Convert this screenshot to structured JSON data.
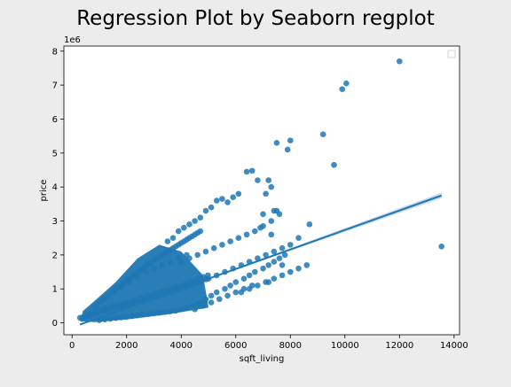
{
  "chart_data": {
    "type": "scatter",
    "title": "Regression Plot by Seaborn regplot",
    "xlabel": "sqft_living",
    "ylabel": "price",
    "y_offset_label": "1e6",
    "xlim": [
      -300,
      14200
    ],
    "ylim": [
      -0.35,
      8.15
    ],
    "y_unit_multiplier": 1000000,
    "x_ticks": [
      0,
      2000,
      4000,
      6000,
      8000,
      10000,
      12000,
      14000
    ],
    "x_tick_labels": [
      "0",
      "2000",
      "4000",
      "6000",
      "8000",
      "10000",
      "12000",
      "14000"
    ],
    "y_ticks": [
      0,
      1,
      2,
      3,
      4,
      5,
      6,
      7,
      8
    ],
    "y_tick_labels": [
      "0",
      "1",
      "2",
      "3",
      "4",
      "5",
      "6",
      "7",
      "8"
    ],
    "grid": false,
    "legend": {
      "placement": "upper right",
      "entries": []
    },
    "colors": {
      "point": "#1f77b4",
      "line": "#1f77b4",
      "band": "#aecbe6",
      "background": "#ececec",
      "axes_bg": "#ffffff"
    },
    "regression_line": {
      "x": [
        290,
        13540
      ],
      "y": [
        -0.05,
        3.75
      ],
      "ci_halfwidth_at_end": 0.08
    },
    "scatter_series": {
      "name": "",
      "note_dense_region": "dense cluster from ~300 to ~5000 sqft, price ~0.1 to ~2.5 (1e6)",
      "x": [
        290,
        370,
        420,
        480,
        520,
        560,
        600,
        640,
        700,
        760,
        820,
        880,
        940,
        1000,
        1060,
        1120,
        1180,
        1240,
        1300,
        1380,
        1460,
        1540,
        1620,
        1700,
        1780,
        1860,
        1940,
        2020,
        2100,
        2180,
        2260,
        2340,
        2420,
        2500,
        2580,
        2660,
        2740,
        2820,
        2900,
        2980,
        3060,
        3140,
        3220,
        3300,
        3380,
        3460,
        3540,
        3620,
        3700,
        3780,
        3860,
        3940,
        4020,
        4100,
        4180,
        4260,
        4340,
        4420,
        4500,
        4580,
        4660,
        4740,
        4820,
        4900,
        4980,
        800,
        900,
        1000,
        1100,
        1200,
        1300,
        1400,
        1500,
        1600,
        1700,
        1800,
        1900,
        2000,
        2100,
        2200,
        2300,
        2400,
        2500,
        2600,
        2700,
        2800,
        2900,
        3000,
        3100,
        3200,
        3300,
        3400,
        3500,
        3600,
        3700,
        3800,
        3900,
        4000,
        4100,
        4200,
        4300,
        4400,
        4500,
        4600,
        4700,
        1000,
        1200,
        1400,
        1600,
        1800,
        2000,
        2200,
        2400,
        2600,
        2800,
        3000,
        3200,
        3400,
        3600,
        3800,
        4000,
        4200,
        4400,
        4600,
        4800,
        1500,
        1800,
        2100,
        2400,
        2700,
        3000,
        3300,
        3600,
        3900,
        4200,
        3500,
        3700,
        3900,
        4100,
        4300,
        4500,
        4700,
        4900,
        5100,
        5300,
        5500,
        5700,
        5900,
        6100,
        4000,
        4300,
        4600,
        4900,
        5200,
        5500,
        5800,
        6100,
        6400,
        6700,
        7000,
        7300,
        7600,
        5000,
        5300,
        5600,
        5900,
        6200,
        6500,
        6800,
        7100,
        7400,
        7700,
        8000,
        8300,
        4700,
        4900,
        5100,
        5300,
        5600,
        5800,
        6000,
        6300,
        6500,
        6700,
        7000,
        7200,
        7400,
        7600,
        7800,
        6200,
        6500,
        6800,
        7100,
        7400,
        7700,
        8000,
        8300,
        8600,
        4500,
        4800,
        5100,
        5400,
        5700,
        6000,
        6300,
        6600,
        8700,
        7500,
        7300,
        6800,
        6600,
        6400,
        7200,
        7100,
        7000,
        6900,
        9200,
        9600,
        9900,
        10050,
        12000,
        13540,
        7500,
        8000,
        7900,
        7400,
        7300,
        7700,
        7200
      ],
      "y": [
        0.15,
        0.12,
        0.18,
        0.2,
        0.16,
        0.22,
        0.25,
        0.2,
        0.28,
        0.25,
        0.3,
        0.27,
        0.35,
        0.3,
        0.38,
        0.33,
        0.42,
        0.36,
        0.45,
        0.4,
        0.48,
        0.43,
        0.52,
        0.46,
        0.55,
        0.5,
        0.58,
        0.52,
        0.62,
        0.55,
        0.66,
        0.6,
        0.7,
        0.63,
        0.74,
        0.66,
        0.78,
        0.7,
        0.82,
        0.74,
        0.86,
        0.78,
        0.9,
        0.82,
        0.94,
        0.86,
        0.98,
        0.9,
        1.02,
        0.95,
        1.06,
        1.0,
        1.1,
        1.04,
        1.15,
        1.08,
        1.2,
        1.12,
        1.25,
        1.18,
        1.3,
        1.22,
        1.35,
        1.28,
        1.4,
        0.45,
        0.52,
        0.6,
        0.66,
        0.72,
        0.8,
        0.86,
        0.92,
        1.0,
        1.05,
        1.12,
        1.18,
        1.25,
        1.3,
        1.38,
        1.42,
        1.5,
        1.55,
        1.6,
        1.66,
        1.72,
        1.78,
        1.85,
        1.9,
        1.95,
        2.0,
        2.05,
        2.1,
        2.15,
        2.2,
        2.25,
        2.3,
        2.35,
        2.4,
        2.45,
        2.5,
        2.55,
        2.6,
        2.65,
        2.7,
        0.08,
        0.1,
        0.12,
        0.14,
        0.16,
        0.18,
        0.2,
        0.22,
        0.24,
        0.26,
        0.28,
        0.3,
        0.32,
        0.34,
        0.36,
        0.4,
        0.45,
        0.5,
        0.55,
        0.6,
        0.9,
        1.05,
        1.2,
        1.35,
        1.5,
        1.6,
        1.7,
        1.8,
        1.9,
        2.0,
        2.4,
        2.5,
        2.7,
        2.8,
        2.9,
        3.0,
        3.1,
        3.3,
        3.4,
        3.6,
        3.65,
        3.55,
        3.7,
        3.8,
        1.8,
        1.9,
        2.0,
        2.1,
        2.2,
        2.3,
        2.4,
        2.5,
        2.6,
        2.7,
        2.85,
        3.0,
        3.2,
        1.3,
        1.4,
        1.5,
        1.6,
        1.7,
        1.8,
        1.9,
        2.0,
        2.1,
        2.2,
        2.3,
        2.5,
        0.6,
        0.7,
        0.8,
        0.9,
        1.0,
        1.1,
        1.2,
        1.3,
        1.4,
        1.5,
        1.6,
        1.7,
        1.8,
        1.9,
        2.0,
        0.9,
        1.0,
        1.1,
        1.2,
        1.3,
        1.4,
        1.5,
        1.6,
        1.7,
        0.4,
        0.5,
        0.6,
        0.7,
        0.8,
        0.9,
        1.0,
        1.1,
        2.9,
        3.3,
        4.0,
        4.2,
        4.48,
        4.45,
        4.2,
        3.8,
        3.2,
        2.8,
        5.55,
        4.65,
        6.88,
        7.05,
        7.7,
        2.25,
        5.3,
        5.37,
        5.1,
        3.3,
        2.6,
        1.7,
        1.2
      ]
    }
  }
}
